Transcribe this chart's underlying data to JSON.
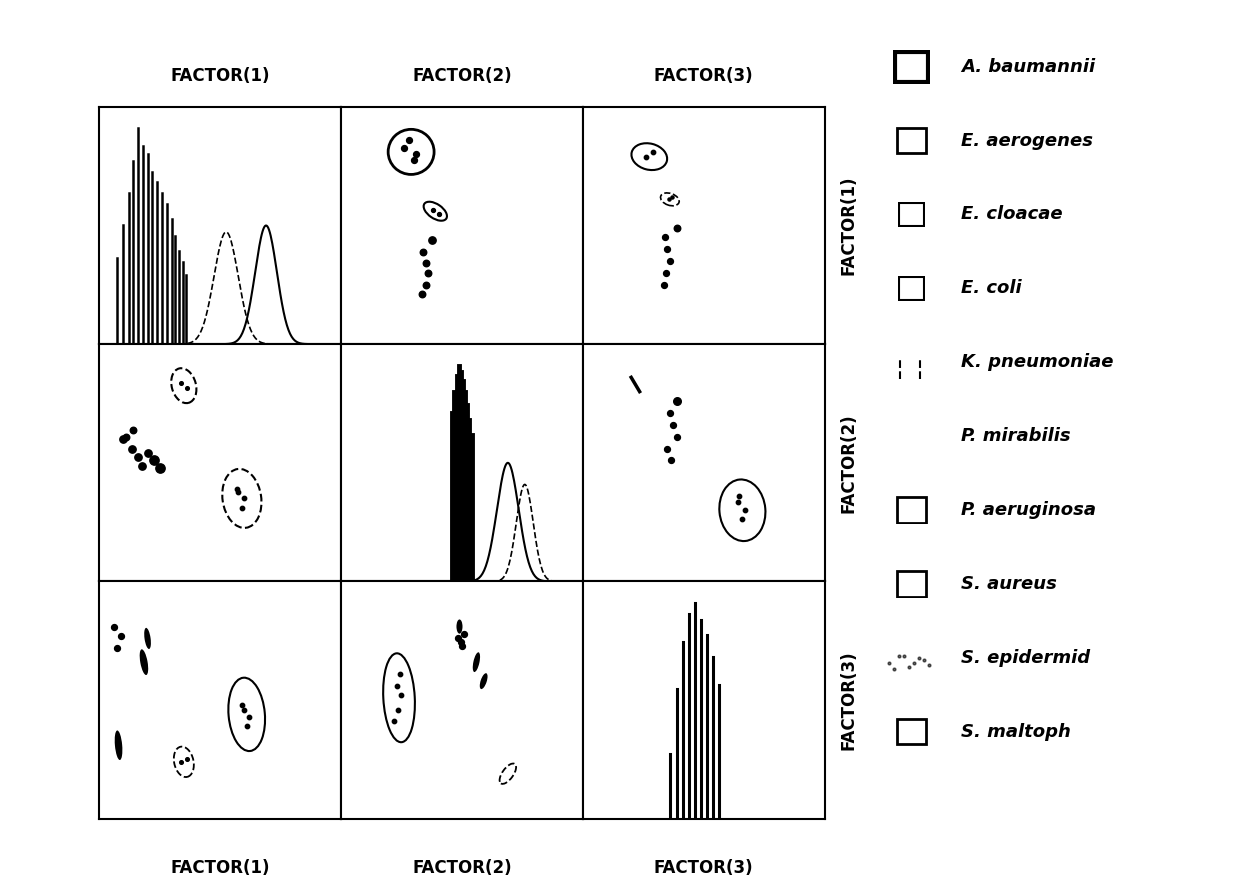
{
  "factors": [
    "FACTOR(1)",
    "FACTOR(2)",
    "FACTOR(3)"
  ],
  "legend_species": [
    "A. baumannii",
    "E. aerogenes",
    "E. cloacae",
    "E. coli",
    "K. pneumoniae",
    "P. mirabilis",
    "P. aeruginosa",
    "S. aureus",
    "S. epidermid",
    "S. maltoph"
  ],
  "background_color": "#ffffff",
  "axis_label_fontsize": 12,
  "legend_fontsize": 13
}
